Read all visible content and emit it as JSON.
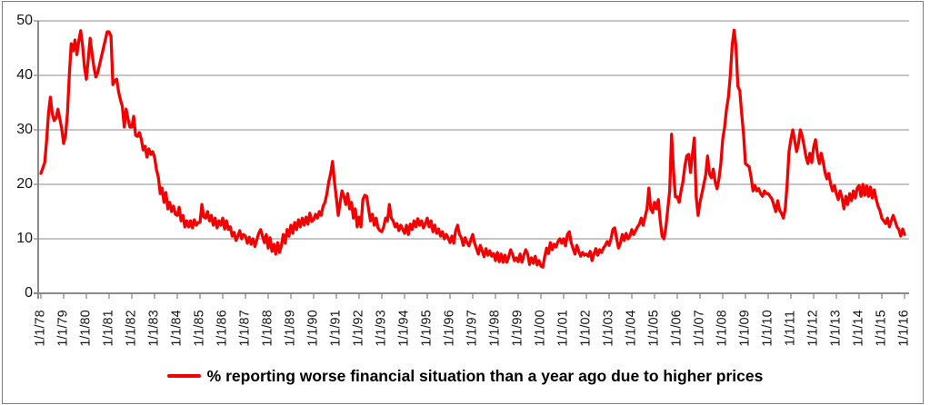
{
  "chart_data": {
    "type": "line",
    "title": "",
    "legend": "% reporting worse financial situation than a year ago due to higher prices",
    "legend_position": "bottom",
    "grid": true,
    "line_color": "#f40000",
    "gridline_color": "#a3a3a3",
    "axis_color": "#8a8a8a",
    "text_color": "#141414",
    "x_axis": {
      "interval": "monthly",
      "tick_labels": [
        "1/1/78",
        "1/1/79",
        "1/1/80",
        "1/1/81",
        "1/1/82",
        "1/1/83",
        "1/1/84",
        "1/1/85",
        "1/1/86",
        "1/1/87",
        "1/1/88",
        "1/1/89",
        "1/1/90",
        "1/1/91",
        "1/1/92",
        "1/1/93",
        "1/1/94",
        "1/1/95",
        "1/1/96",
        "1/1/97",
        "1/1/98",
        "1/1/99",
        "1/1/00",
        "1/1/01",
        "1/1/02",
        "1/1/03",
        "1/1/04",
        "1/1/05",
        "1/1/06",
        "1/1/07",
        "1/1/08",
        "1/1/09",
        "1/1/10",
        "1/1/11",
        "1/1/12",
        "1/1/13",
        "1/1/14",
        "1/1/15",
        "1/1/16"
      ]
    },
    "y_axis": {
      "min": 0,
      "max": 50,
      "tick_labels": [
        "0",
        "10",
        "20",
        "30",
        "40",
        "50"
      ]
    },
    "values": [
      22,
      23,
      24,
      28,
      33,
      36,
      33,
      31.7,
      32.2,
      33.8,
      32,
      30.2,
      27.5,
      29,
      33,
      40,
      45.8,
      44.5,
      46.5,
      43.8,
      46.3,
      48.2,
      45.5,
      41.5,
      39.3,
      43,
      46.8,
      44,
      41.5,
      39.7,
      40.5,
      42,
      43.5,
      45,
      46.5,
      48,
      48,
      47.2,
      38.3,
      39,
      39.3,
      37,
      35.5,
      34.3,
      30.5,
      33.8,
      32,
      30.5,
      30.5,
      32.5,
      29,
      28.8,
      29.5,
      28.3,
      26.3,
      27,
      25,
      26.5,
      25.5,
      26,
      25,
      22.7,
      21.3,
      18.3,
      19.3,
      16.7,
      18.5,
      15.5,
      16.7,
      15,
      16,
      14.5,
      14.3,
      15.8,
      13.3,
      14.3,
      12.2,
      13.3,
      12.2,
      13.3,
      12,
      13.5,
      12.5,
      13,
      13,
      16.3,
      14,
      13.8,
      15,
      13.3,
      14.3,
      12.5,
      13.8,
      12,
      13.3,
      12.5,
      13.8,
      11.8,
      13.3,
      11.7,
      12.2,
      10.5,
      11.2,
      9.7,
      10.5,
      11.5,
      10,
      10.8,
      10.5,
      9.2,
      10.3,
      9,
      10,
      8.6,
      9.8,
      11,
      11.7,
      10.5,
      9.3,
      10.8,
      8.3,
      10.2,
      7.7,
      9,
      7.2,
      9.3,
      7.5,
      8.8,
      10.8,
      9.2,
      11.7,
      10.5,
      12.5,
      11,
      13,
      11.7,
      13.5,
      12.2,
      13.8,
      12.5,
      14,
      12.7,
      14.7,
      13.2,
      13.5,
      14.5,
      13.8,
      15,
      14.3,
      16,
      16.7,
      18.3,
      20.5,
      22,
      24.2,
      20.5,
      17.5,
      14.3,
      16.7,
      18.8,
      17.8,
      16.3,
      18.3,
      15.5,
      16.7,
      13.8,
      15.5,
      12.2,
      14,
      12.2,
      17.2,
      18,
      17.8,
      15.5,
      13.3,
      14.5,
      12.5,
      13.8,
      12,
      11.5,
      11.3,
      12.2,
      13.8,
      13.3,
      16.3,
      13.8,
      13.3,
      12.2,
      12.8,
      11.5,
      12.5,
      11.8,
      11,
      12.5,
      10.8,
      12.7,
      11.7,
      13.3,
      12.2,
      13.7,
      12.5,
      13.3,
      12,
      12.8,
      13.8,
      12.2,
      13.3,
      11.3,
      12.5,
      11,
      11.8,
      10.5,
      11.3,
      10,
      10.8,
      10.2,
      9.3,
      10.5,
      9.2,
      11.5,
      12.5,
      10.8,
      10.2,
      8.8,
      10.2,
      9.3,
      8.7,
      9.8,
      10.8,
      9.2,
      8.2,
      7.2,
      8.8,
      7.8,
      6.7,
      8.2,
      7,
      7.8,
      6.8,
      7.3,
      6,
      7.5,
      5.8,
      7.2,
      5.7,
      7,
      5.7,
      6.7,
      8,
      7.2,
      6,
      6.5,
      5.8,
      7.2,
      5.7,
      7,
      8,
      7.2,
      5.3,
      6.5,
      5.5,
      6.8,
      5.2,
      6,
      5,
      4.8,
      6.7,
      8.3,
      7.3,
      9.3,
      8,
      9,
      8.5,
      9.5,
      10,
      9.2,
      10,
      8.7,
      10.8,
      11.3,
      9.3,
      8.2,
      7.2,
      8.8,
      7.7,
      6.8,
      7.5,
      7,
      7.2,
      6.8,
      7.7,
      6,
      7.2,
      8.2,
      7,
      8,
      7.5,
      8.3,
      8.8,
      9.5,
      8.8,
      10,
      11.7,
      12,
      10,
      8.3,
      9.2,
      10.8,
      9.7,
      11,
      10,
      10.5,
      11.7,
      10.8,
      11.5,
      12.2,
      12.7,
      13.8,
      12.5,
      14,
      15.5,
      19.3,
      15.5,
      14.8,
      16.7,
      15.5,
      17.2,
      13.3,
      10.5,
      10,
      12.2,
      15.5,
      18.8,
      29.2,
      22.7,
      17.7,
      17.7,
      16.7,
      18.8,
      20.5,
      23.3,
      25.2,
      25.5,
      22.2,
      25.5,
      28.5,
      17.7,
      14.3,
      16.7,
      18.3,
      20,
      21.7,
      25.2,
      21.9,
      21.2,
      22.8,
      20.5,
      19.2,
      21,
      23.8,
      28.3,
      30.5,
      33.8,
      36,
      40,
      45.5,
      48.3,
      45.3,
      38,
      37.2,
      33,
      29.2,
      23.8,
      23.5,
      23.2,
      21.2,
      18.8,
      19.8,
      18.8,
      19.2,
      18.3,
      17.8,
      18.8,
      18.3,
      18.3,
      17.8,
      17.3,
      16.2,
      15,
      17,
      15.3,
      14.7,
      13.8,
      15.5,
      20,
      26,
      28.3,
      30,
      28,
      26,
      27.5,
      30,
      28.8,
      27,
      25,
      23.8,
      25.7,
      24,
      26.8,
      28.2,
      25.5,
      23.8,
      25.7,
      24.2,
      22.2,
      21,
      22,
      20,
      18.8,
      19.8,
      18.3,
      17.2,
      18.8,
      17.5,
      15.5,
      17.8,
      16.3,
      18.3,
      17,
      18.8,
      17.5,
      19.3,
      19.8,
      17.8,
      20,
      18,
      19.7,
      17.8,
      19.5,
      17.5,
      19,
      17.3,
      16,
      15.2,
      13.8,
      13.3,
      12.8,
      13.8,
      12.2,
      13.3,
      14.3,
      13.3,
      12.2,
      11.7,
      10.5,
      11.8,
      10.8
    ]
  }
}
